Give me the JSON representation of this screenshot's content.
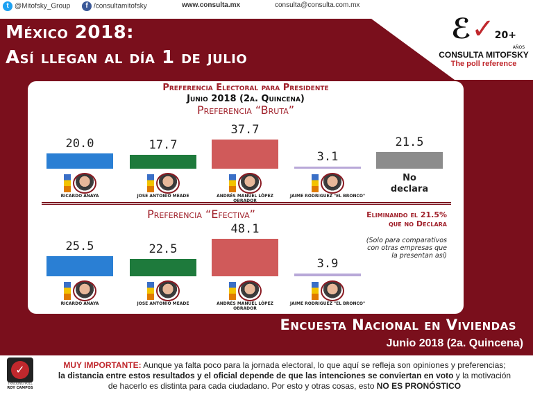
{
  "header": {
    "twitter": "@Mitofsky_Group",
    "facebook": "/consultamitofsky",
    "website": "www.consulta.mx",
    "email": "consulta@consulta.com.mx"
  },
  "title": {
    "line1": "México 2018:",
    "line2": "Así llegan al día 1 de julio"
  },
  "brand": {
    "name": "CONSULTA MITOFSKY",
    "tagline": "The poll reference",
    "years": "20+",
    "years_label": "AÑOS"
  },
  "panel": {
    "heading": "Preferencia Electoral para Presidente",
    "period": "Junio 2018 (2a. Quincena)"
  },
  "chart_data": [
    {
      "type": "bar",
      "title": "Preferencia “Bruta”",
      "categories": [
        "RICARDO ANAYA",
        "JOSE ANTONIO MEADE",
        "ANDRÉS MANUEL LÓPEZ OBRADOR",
        "JAIME RODRIGUEZ \"EL BRONCO\"",
        "No declara"
      ],
      "values": [
        20.0,
        17.7,
        37.7,
        3.1,
        21.5
      ],
      "colors": [
        "#2a7fd4",
        "#1e7a3c",
        "#d05a5a",
        "#b8a8d8",
        "#8c8c8c"
      ]
    },
    {
      "type": "bar",
      "title": "Preferencia “Efectiva”",
      "categories": [
        "RICARDO ANAYA",
        "JOSE ANTONIO MEADE",
        "ANDRÉS MANUEL LÓPEZ OBRADOR",
        "JAIME RODRIGUEZ \"EL BRONCO\""
      ],
      "values": [
        25.5,
        22.5,
        48.1,
        3.9
      ],
      "colors": [
        "#2a7fd4",
        "#1e7a3c",
        "#d05a5a",
        "#b8a8d8"
      ],
      "note_title": "Eliminando el 21.5% que no Declara",
      "note": "(Solo para comparativos con otras empresas que la presentan así)"
    }
  ],
  "survey": {
    "name": "Encuesta Nacional en Viviendas",
    "period": "Junio 2018 (2a. Quincena)"
  },
  "footer": {
    "badge_line1": "TRACKING POLL",
    "badge_line2": "ROY CAMPOS",
    "important": "MUY IMPORTANTE:",
    "text1": " Aunque ya falta poco para la jornada electoral, lo que aquí se refleja son opiniones y preferencias;",
    "bold2": "la distancia entre estos resultados y el oficial depende de que las intenciones se conviertan en voto",
    "text2": " y la motivación",
    "text3": "de hacerlo es distinta para cada ciudadano. Por esto y otras cosas, esto ",
    "bold3": "NO ES PRONÓSTICO"
  },
  "colors": {
    "maroon": "#7a0f1c",
    "accent_red": "#c0282d"
  }
}
